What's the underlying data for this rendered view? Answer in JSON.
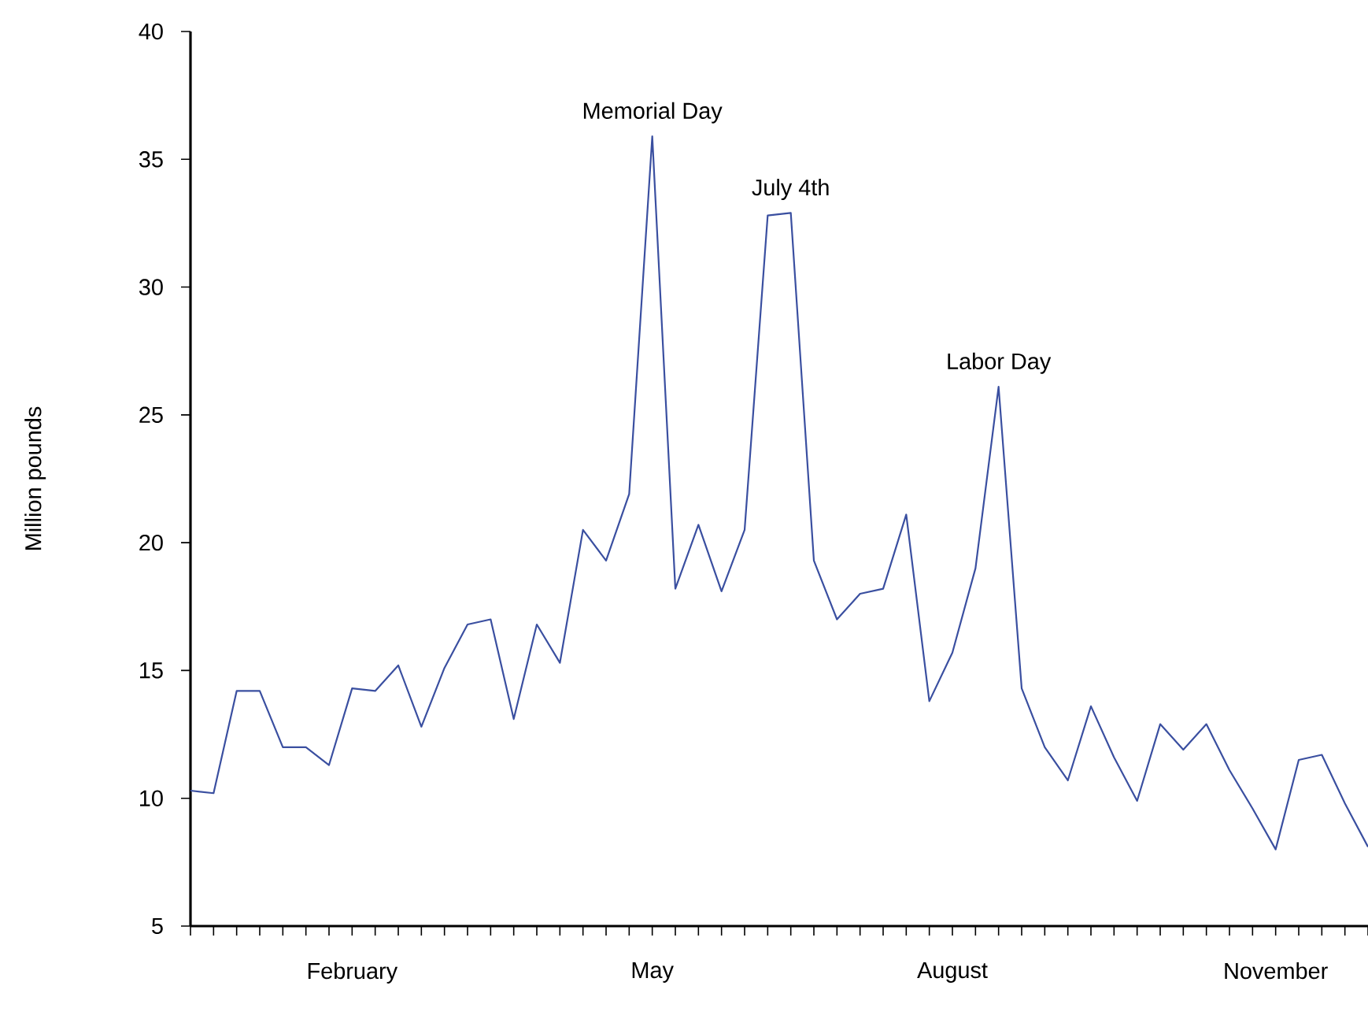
{
  "chart_data": {
    "type": "line",
    "ylabel": "Million pounds",
    "categories": [
      null,
      null,
      null,
      null,
      null,
      null,
      null,
      "February",
      null,
      null,
      null,
      null,
      null,
      null,
      null,
      null,
      null,
      null,
      null,
      null,
      "May",
      null,
      null,
      null,
      null,
      null,
      null,
      null,
      null,
      null,
      null,
      null,
      null,
      "August",
      null,
      null,
      null,
      null,
      null,
      null,
      null,
      null,
      null,
      null,
      null,
      null,
      null,
      "November",
      null,
      null,
      null,
      null
    ],
    "series": [
      {
        "color": "#3a4fa0",
        "values": [
          10.3,
          10.2,
          14.2,
          14.2,
          12.0,
          12.0,
          11.3,
          14.3,
          14.2,
          15.2,
          12.8,
          15.1,
          16.8,
          17.0,
          13.1,
          16.8,
          15.3,
          20.5,
          19.3,
          21.9,
          35.9,
          18.2,
          20.7,
          18.1,
          20.5,
          32.8,
          32.9,
          19.3,
          17.0,
          18.0,
          18.2,
          21.1,
          13.8,
          15.7,
          19.0,
          26.1,
          14.3,
          12.0,
          10.7,
          13.6,
          11.6,
          9.9,
          12.9,
          11.9,
          12.9,
          11.1,
          9.6,
          8.0,
          11.5,
          11.7,
          9.8,
          8.1
        ]
      }
    ],
    "ylim": [
      5,
      40
    ],
    "yticks": [
      5,
      10,
      15,
      20,
      25,
      30,
      35,
      40
    ],
    "annotations": [
      {
        "text": "Memorial Day",
        "y": 35.9
      },
      {
        "text": "July 4th",
        "y": 32.9
      },
      {
        "text": "Labor Day",
        "y": 26.1
      }
    ],
    "grid": false,
    "marker": "none",
    "line_style": "solid"
  }
}
